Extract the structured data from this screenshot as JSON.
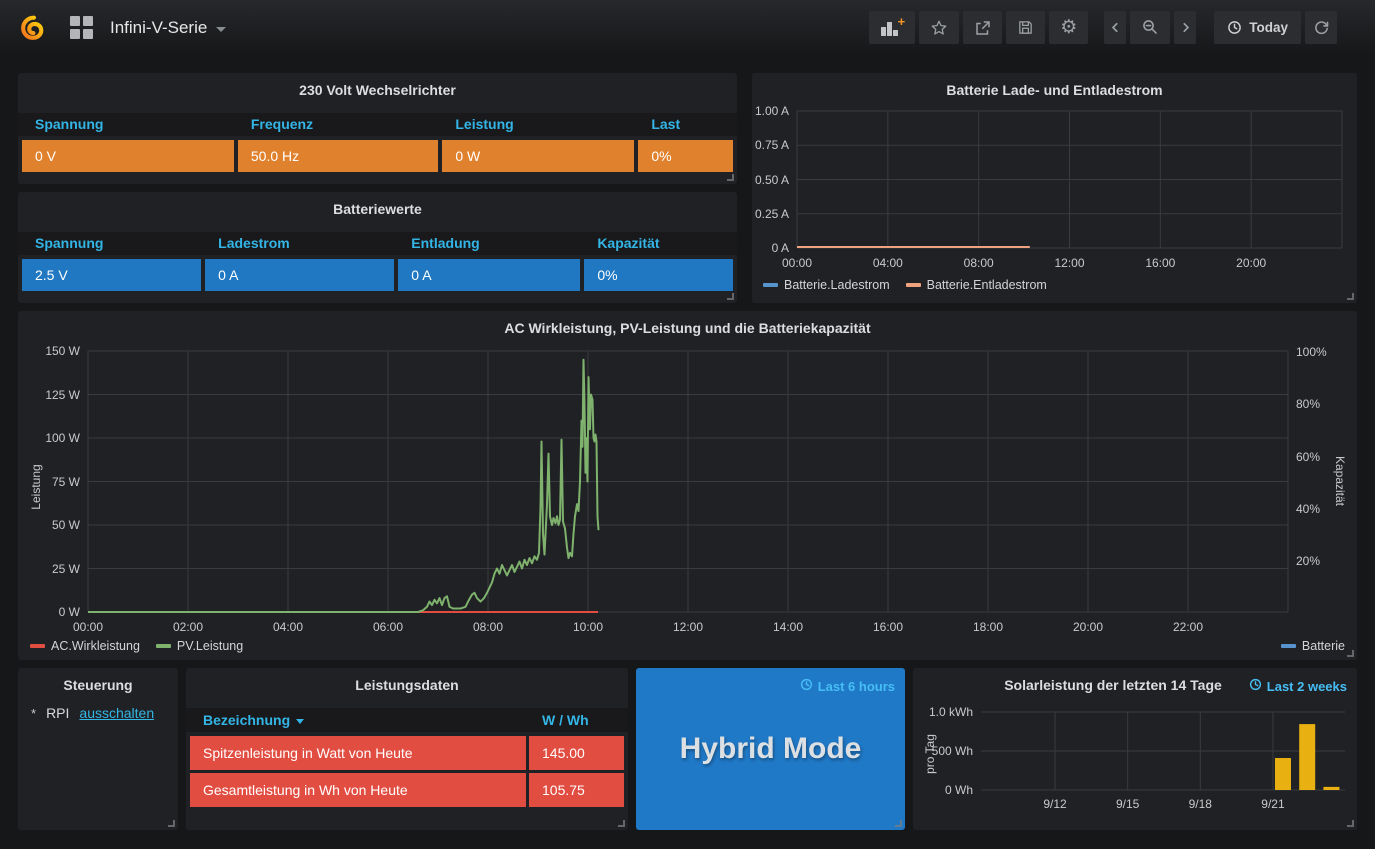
{
  "navbar": {
    "title": "Infini-V-Serie",
    "today_label": "Today"
  },
  "panels": {
    "inverter": {
      "title": "230 Volt Wechselrichter",
      "columns": [
        "Spannung",
        "Frequenz",
        "Leistung",
        "Last"
      ],
      "values": [
        "0 V",
        "50.0 Hz",
        "0 W",
        "0%"
      ],
      "cell_color": "#e0812e",
      "header_color": "#33b5e5"
    },
    "battery_values": {
      "title": "Batteriewerte",
      "columns": [
        "Spannung",
        "Ladestrom",
        "Entladung",
        "Kapazität"
      ],
      "values": [
        "2.5 V",
        "0 A",
        "0 A",
        "0%"
      ],
      "cell_color": "#1f78c1",
      "header_color": "#33b5e5"
    },
    "steuerung": {
      "title": "Steuerung",
      "bullet": "*",
      "label": "RPI",
      "link": "ausschalten",
      "link_color": "#33b5e5"
    },
    "leistungsdaten": {
      "title": "Leistungsdaten",
      "columns": [
        "Bezeichnung",
        "W / Wh"
      ],
      "rows": [
        {
          "name": "Spitzenleistung in Watt von Heute",
          "value": "145.00"
        },
        {
          "name": "Gesamtleistung in Wh von Heute",
          "value": "105.75"
        }
      ],
      "row_color": "#e24d42",
      "header_color": "#33b5e5"
    },
    "hybrid": {
      "label": "Hybrid Mode",
      "badge": "Last 6 hours",
      "bg_color": "#2079c7",
      "badge_color": "#46bef5"
    },
    "solar": {
      "badge": "Last 2 weeks",
      "badge_color": "#46bef5"
    }
  },
  "chart_data": [
    {
      "id": "battery_current",
      "type": "line",
      "title": "Batterie Lade- und Entladestrom",
      "x_ticks": [
        "00:00",
        "04:00",
        "08:00",
        "12:00",
        "16:00",
        "20:00"
      ],
      "x_range_hours": [
        0,
        24
      ],
      "y_ticks": [
        "1.00 A",
        "0.75 A",
        "0.50 A",
        "0.25 A",
        "0 A"
      ],
      "ylim": [
        0,
        1
      ],
      "grid": true,
      "legend_position": "bottom-left",
      "series": [
        {
          "name": "Batterie.Ladestrom",
          "color": "#5794ce",
          "points": [
            [
              0,
              0
            ],
            [
              10.25,
              0
            ]
          ]
        },
        {
          "name": "Batterie.Entladestrom",
          "color": "#efa27e",
          "points": [
            [
              0,
              0
            ],
            [
              10.25,
              0
            ]
          ]
        }
      ]
    },
    {
      "id": "power_capacity",
      "type": "line",
      "title": "AC Wirkleistung, PV-Leistung und die Batteriekapazität",
      "ylabel_left": "Leistung",
      "ylabel_right": "Kapazität",
      "x_ticks": [
        "00:00",
        "02:00",
        "04:00",
        "06:00",
        "08:00",
        "10:00",
        "12:00",
        "14:00",
        "16:00",
        "18:00",
        "20:00",
        "22:00"
      ],
      "x_range_hours": [
        0,
        24
      ],
      "y_left_ticks": [
        "150 W",
        "125 W",
        "100 W",
        "75 W",
        "50 W",
        "25 W",
        "0 W"
      ],
      "ylim_left": [
        0,
        150
      ],
      "y_right_ticks": [
        "100%",
        "80%",
        "60%",
        "40%",
        "20%"
      ],
      "ylim_right": [
        0,
        100
      ],
      "grid": true,
      "series": [
        {
          "name": "AC.Wirkleistung",
          "color": "#e24d42",
          "points": [
            [
              0,
              0
            ],
            [
              10.2,
              0
            ]
          ]
        },
        {
          "name": "PV.Leistung",
          "color": "#7eb26d",
          "points": [
            [
              0,
              0
            ],
            [
              6.6,
              0
            ],
            [
              6.7,
              1
            ],
            [
              6.78,
              3
            ],
            [
              6.83,
              6
            ],
            [
              6.88,
              4
            ],
            [
              6.93,
              7
            ],
            [
              6.98,
              5
            ],
            [
              7.03,
              8
            ],
            [
              7.08,
              4
            ],
            [
              7.13,
              8
            ],
            [
              7.18,
              9
            ],
            [
              7.23,
              3
            ],
            [
              7.3,
              2
            ],
            [
              7.45,
              2
            ],
            [
              7.55,
              3
            ],
            [
              7.62,
              7
            ],
            [
              7.68,
              10
            ],
            [
              7.73,
              11
            ],
            [
              7.78,
              8
            ],
            [
              7.85,
              6
            ],
            [
              7.92,
              8
            ],
            [
              7.98,
              11
            ],
            [
              8.03,
              14
            ],
            [
              8.08,
              17
            ],
            [
              8.13,
              22
            ],
            [
              8.18,
              25
            ],
            [
              8.23,
              22
            ],
            [
              8.28,
              27
            ],
            [
              8.33,
              24
            ],
            [
              8.38,
              21
            ],
            [
              8.43,
              24
            ],
            [
              8.48,
              27
            ],
            [
              8.53,
              23
            ],
            [
              8.58,
              26
            ],
            [
              8.63,
              29
            ],
            [
              8.68,
              25
            ],
            [
              8.73,
              30
            ],
            [
              8.78,
              27
            ],
            [
              8.83,
              31
            ],
            [
              8.88,
              28
            ],
            [
              8.93,
              32
            ],
            [
              8.98,
              30
            ],
            [
              9.02,
              34
            ],
            [
              9.05,
              60
            ],
            [
              9.07,
              98
            ],
            [
              9.1,
              45
            ],
            [
              9.13,
              33
            ],
            [
              9.18,
              62
            ],
            [
              9.21,
              91
            ],
            [
              9.24,
              55
            ],
            [
              9.28,
              50
            ],
            [
              9.31,
              54
            ],
            [
              9.35,
              51
            ],
            [
              9.38,
              55
            ],
            [
              9.41,
              50
            ],
            [
              9.44,
              53
            ],
            [
              9.47,
              99
            ],
            [
              9.5,
              52
            ],
            [
              9.54,
              48
            ],
            [
              9.58,
              37
            ],
            [
              9.61,
              31
            ],
            [
              9.64,
              34
            ],
            [
              9.68,
              32
            ],
            [
              9.71,
              45
            ],
            [
              9.74,
              55
            ],
            [
              9.78,
              62
            ],
            [
              9.81,
              58
            ],
            [
              9.84,
              75
            ],
            [
              9.87,
              110
            ],
            [
              9.89,
              95
            ],
            [
              9.91,
              145
            ],
            [
              9.93,
              120
            ],
            [
              9.95,
              80
            ],
            [
              9.97,
              100
            ],
            [
              9.99,
              75
            ],
            [
              10.01,
              135
            ],
            [
              10.04,
              105
            ],
            [
              10.06,
              125
            ],
            [
              10.09,
              122
            ],
            [
              10.11,
              100
            ],
            [
              10.13,
              98
            ],
            [
              10.15,
              102
            ],
            [
              10.17,
              98
            ],
            [
              10.19,
              55
            ],
            [
              10.21,
              47
            ]
          ]
        },
        {
          "name": "Batterie",
          "color": "#5794ce",
          "axis": "right",
          "points": []
        }
      ]
    },
    {
      "id": "solar_daily",
      "type": "bar",
      "title": "Solarleistung der letzten 14 Tage",
      "ylabel": "pro Tag",
      "y_ticks": [
        "1.0 kWh",
        "500 Wh",
        "0 Wh"
      ],
      "ylim_wh": [
        0,
        1000
      ],
      "x_ticks": [
        "9/12",
        "9/15",
        "9/18",
        "9/21"
      ],
      "grid": true,
      "bar_color": "#e8b010",
      "bars": [
        {
          "date": "9/21",
          "wh": 410
        },
        {
          "date": "9/22",
          "wh": 845
        },
        {
          "date": "9/23",
          "wh": 40
        }
      ]
    }
  ]
}
